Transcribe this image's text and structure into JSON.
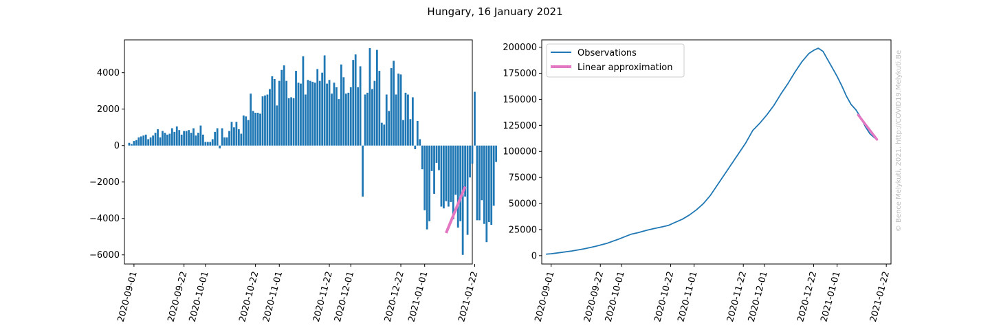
{
  "figure": {
    "title": "Hungary, 16 January 2021",
    "watermark": "© Bence Melykuti, 2021. http://COVID19.Melykuti.Be"
  },
  "chart_data": [
    {
      "type": "bar",
      "title": "",
      "xlabel": "",
      "ylabel": "",
      "x_start": "2020-08-30",
      "x_tick_labels": [
        "2020-09-01",
        "2020-09-22",
        "2020-10-01",
        "2020-10-22",
        "2020-11-01",
        "2020-11-22",
        "2020-12-01",
        "2020-12-22",
        "2021-01-01",
        "2021-01-22"
      ],
      "y_tick_labels": [
        "−6000",
        "−4000",
        "−2000",
        "0",
        "2000",
        "4000"
      ],
      "ylim": [
        -6500,
        5800
      ],
      "xlim": [
        "2020-08-28",
        "2021-01-21"
      ],
      "bar_color": "#1f77b4",
      "values": [
        150,
        80,
        250,
        300,
        450,
        500,
        550,
        600,
        350,
        450,
        550,
        700,
        900,
        450,
        800,
        700,
        600,
        650,
        950,
        750,
        1050,
        850,
        600,
        800,
        800,
        850,
        700,
        950,
        550,
        700,
        1100,
        600,
        200,
        200,
        200,
        350,
        750,
        950,
        -150,
        950,
        450,
        450,
        800,
        1300,
        1000,
        1300,
        900,
        650,
        1650,
        1600,
        1400,
        2850,
        1900,
        1800,
        1800,
        1750,
        2700,
        2750,
        2800,
        3100,
        3800,
        3650,
        2200,
        3550,
        4150,
        4400,
        3550,
        2600,
        2650,
        2600,
        4100,
        3450,
        3400,
        4900,
        2800,
        3600,
        3550,
        3500,
        3450,
        4200,
        3550,
        4000,
        4950,
        3400,
        3600,
        2850,
        3450,
        3200,
        2550,
        4450,
        3750,
        2850,
        2900,
        3200,
        4700,
        5000,
        3200,
        4350,
        -2800,
        2800,
        2900,
        5350,
        3100,
        3550,
        5250,
        4100,
        1250,
        1150,
        2800,
        1900,
        4250,
        4650,
        2800,
        3950,
        3900,
        1400,
        2900,
        2800,
        1450,
        2650,
        -200,
        1350,
        350,
        -1300,
        -3550,
        -4600,
        -4150,
        -1400,
        -2650,
        -950,
        -1350,
        -3350,
        -3450,
        -3050,
        -3350,
        -3100,
        -4050,
        -2700,
        -4500,
        -4150,
        -6000,
        -2800,
        -4900,
        -1750,
        -1000,
        2950,
        -4100,
        -4100,
        -3000,
        -4300,
        -5300,
        -4200,
        -4350,
        -3300,
        -900
      ],
      "approximation": {
        "color": "#e377c2",
        "x": [
          "2021-01-10",
          "2021-01-18"
        ],
        "y": [
          -4800,
          -2250
        ]
      }
    },
    {
      "type": "line",
      "title": "",
      "xlabel": "",
      "ylabel": "",
      "x_start": "2020-08-30",
      "x_tick_labels": [
        "2020-09-01",
        "2020-09-22",
        "2020-10-01",
        "2020-10-22",
        "2020-11-01",
        "2020-11-22",
        "2020-12-01",
        "2020-12-22",
        "2021-01-01",
        "2021-01-22"
      ],
      "y_tick_labels": [
        "0",
        "25000",
        "50000",
        "75000",
        "100000",
        "125000",
        "150000",
        "175000",
        "200000"
      ],
      "ylim": [
        -8000,
        207000
      ],
      "xlim": [
        "2020-08-28",
        "2021-01-24"
      ],
      "legend": {
        "placement": "upper-left",
        "entries": [
          "Observations",
          "Linear approximation"
        ]
      },
      "series": [
        {
          "name": "Observations",
          "color": "#1f77b4",
          "points": [
            [
              "2020-08-30",
              1500
            ],
            [
              "2020-09-01",
              1800
            ],
            [
              "2020-09-05",
              3000
            ],
            [
              "2020-09-10",
              4500
            ],
            [
              "2020-09-15",
              6500
            ],
            [
              "2020-09-20",
              9000
            ],
            [
              "2020-09-25",
              12000
            ],
            [
              "2020-09-30",
              16000
            ],
            [
              "2020-10-05",
              20500
            ],
            [
              "2020-10-08",
              22000
            ],
            [
              "2020-10-12",
              24500
            ],
            [
              "2020-10-15",
              26000
            ],
            [
              "2020-10-18",
              27500
            ],
            [
              "2020-10-21",
              29000
            ],
            [
              "2020-10-24",
              32000
            ],
            [
              "2020-10-27",
              35000
            ],
            [
              "2020-10-30",
              39000
            ],
            [
              "2020-11-02",
              44000
            ],
            [
              "2020-11-05",
              50000
            ],
            [
              "2020-11-08",
              58000
            ],
            [
              "2020-11-11",
              68000
            ],
            [
              "2020-11-14",
              78000
            ],
            [
              "2020-11-17",
              88000
            ],
            [
              "2020-11-20",
              98000
            ],
            [
              "2020-11-23",
              108000
            ],
            [
              "2020-11-26",
              120000
            ],
            [
              "2020-11-29",
              127000
            ],
            [
              "2020-12-02",
              135000
            ],
            [
              "2020-12-05",
              144000
            ],
            [
              "2020-12-08",
              155000
            ],
            [
              "2020-12-11",
              165000
            ],
            [
              "2020-12-14",
              176000
            ],
            [
              "2020-12-17",
              186000
            ],
            [
              "2020-12-20",
              194000
            ],
            [
              "2020-12-22",
              197000
            ],
            [
              "2020-12-24",
              199000
            ],
            [
              "2020-12-26",
              196000
            ],
            [
              "2020-12-28",
              188000
            ],
            [
              "2020-12-30",
              180000
            ],
            [
              "2021-01-01",
              172000
            ],
            [
              "2021-01-03",
              163000
            ],
            [
              "2021-01-05",
              153000
            ],
            [
              "2021-01-07",
              145000
            ],
            [
              "2021-01-09",
              140000
            ],
            [
              "2021-01-11",
              133000
            ],
            [
              "2021-01-13",
              124000
            ],
            [
              "2021-01-15",
              117000
            ],
            [
              "2021-01-17",
              113000
            ]
          ]
        },
        {
          "name": "Linear approximation",
          "color": "#e377c2",
          "points": [
            [
              "2021-01-10",
              135000
            ],
            [
              "2021-01-18",
              111500
            ]
          ]
        }
      ]
    }
  ]
}
